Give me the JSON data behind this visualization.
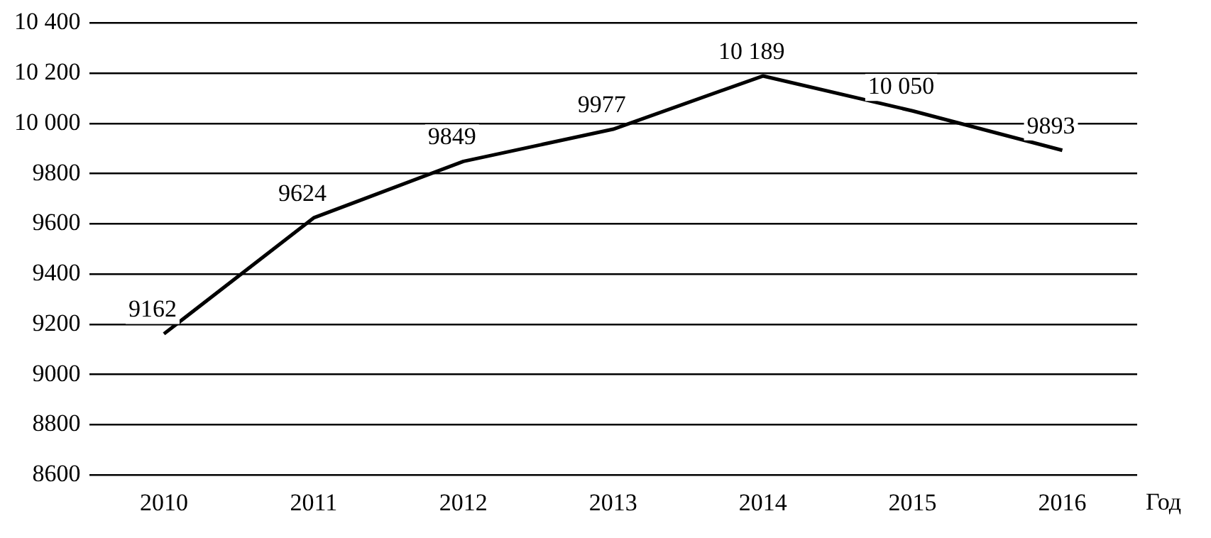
{
  "chart_data": {
    "type": "line",
    "xlabel": "Год",
    "categories": [
      "2010",
      "2011",
      "2012",
      "2013",
      "2014",
      "2015",
      "2016"
    ],
    "series": [
      {
        "color": "#000000",
        "values": [
          9162,
          9624,
          9849,
          9977,
          10189,
          10050,
          9893
        ],
        "value_labels": [
          "9162",
          "9624",
          "9849",
          "9977",
          "10 189",
          "10 050",
          "9893"
        ]
      }
    ],
    "ylim": [
      8600,
      10400
    ],
    "yticks": [
      8600,
      8800,
      9000,
      9200,
      9400,
      9600,
      9800,
      {
        "value": 10000,
        "label": "10 000"
      },
      {
        "value": 10200,
        "label": "10 200"
      },
      {
        "value": 10400,
        "label": "10 400"
      }
    ],
    "grid": "y",
    "legend": false,
    "marker": "none",
    "line_style": "solid"
  }
}
